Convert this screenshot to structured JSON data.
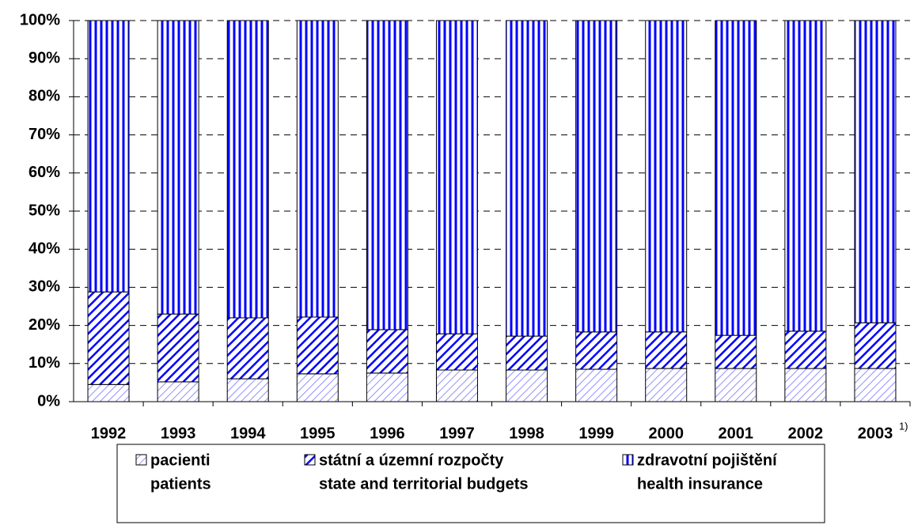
{
  "chart_data": {
    "type": "stacked_bar",
    "categories": [
      "1992",
      "1993",
      "1994",
      "1995",
      "1996",
      "1997",
      "1998",
      "1999",
      "2000",
      "2001",
      "2002",
      "2003"
    ],
    "annotation": "1)",
    "series": [
      {
        "name": "pacienti",
        "name_en": "patients",
        "color": "#0000ff",
        "values": [
          4.5,
          5.2,
          6.0,
          7.3,
          7.5,
          8.3,
          8.3,
          8.5,
          8.7,
          8.7,
          8.7,
          8.7
        ]
      },
      {
        "name": "státní a územní rozpočty",
        "name_en": "state and territorial budgets",
        "color": "#0000ff",
        "values": [
          24.3,
          17.8,
          16.0,
          14.9,
          11.4,
          9.5,
          8.9,
          9.8,
          9.6,
          8.7,
          9.8,
          12.0
        ]
      },
      {
        "name": "zdravotní pojištění",
        "name_en": "health insurance",
        "color": "#0000ff",
        "values": [
          71.2,
          77.0,
          78.0,
          77.8,
          81.1,
          82.2,
          82.8,
          81.7,
          81.7,
          82.6,
          81.5,
          79.3
        ]
      }
    ],
    "ylim": [
      0,
      100
    ],
    "yticks": [
      {
        "value": 0,
        "label": "0%"
      },
      {
        "value": 10,
        "label": "10%"
      },
      {
        "value": 20,
        "label": "20%"
      },
      {
        "value": 30,
        "label": "30%"
      },
      {
        "value": 40,
        "label": "40%"
      },
      {
        "value": 50,
        "label": "50%"
      },
      {
        "value": 60,
        "label": "60%"
      },
      {
        "value": 70,
        "label": "70%"
      },
      {
        "value": 80,
        "label": "80%"
      },
      {
        "value": 90,
        "label": "90%"
      },
      {
        "value": 100,
        "label": "100%"
      }
    ],
    "grid": true,
    "legend": "bottom"
  }
}
